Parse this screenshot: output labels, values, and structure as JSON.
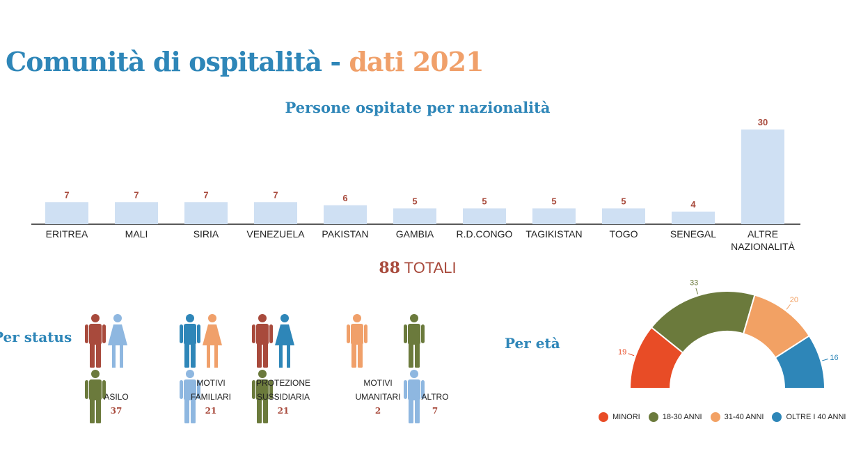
{
  "title": {
    "main": "Comunità di ospitalità",
    "separator": " - ",
    "year": "dati 2021"
  },
  "colors": {
    "accent_blue": "#2e86b8",
    "accent_orange": "#f0a06a",
    "bar_fill": "#cfe0f3",
    "value_red": "#a84a3c",
    "person_brown": "#a84a3c",
    "person_lightblue": "#8eb7e0",
    "person_olive": "#6b7a3c",
    "person_blue": "#2e86b8",
    "person_orange": "#f0a06a"
  },
  "chart_data": [
    {
      "type": "bar",
      "title": "Persone ospitate per nazionalità",
      "categories": [
        "ERITREA",
        "MALI",
        "SIRIA",
        "VENEZUELA",
        "PAKISTAN",
        "GAMBIA",
        "R.D.CONGO",
        "TAGIKISTAN",
        "TOGO",
        "SENEGAL",
        "ALTRE NAZIONALITÀ"
      ],
      "values": [
        7,
        7,
        7,
        7,
        6,
        5,
        5,
        5,
        5,
        4,
        30
      ],
      "ylim": [
        0,
        30
      ],
      "grid": false,
      "legend": "none"
    },
    {
      "type": "pie",
      "title": "Per età",
      "categories": [
        "MINORI",
        "18-30 ANNI",
        "31-40 ANNI",
        "OLTRE I 40 ANNI"
      ],
      "values": [
        19,
        33,
        20,
        16
      ],
      "colors": [
        "#e84c26",
        "#6b7a3c",
        "#f2a164",
        "#2e86b8"
      ],
      "legend": "bottom"
    }
  ],
  "total": {
    "number": "88",
    "label": "TOTALI"
  },
  "status": {
    "title": "Per status",
    "groups": [
      {
        "label_lines": [
          "ASILO"
        ],
        "count": "37",
        "icons": [
          "person-man-icon",
          "person-woman-icon",
          "person-man-icon"
        ],
        "colors": [
          "#a84a3c",
          "#8eb7e0",
          "#6b7a3c"
        ]
      },
      {
        "label_lines": [
          "MOTIVI",
          "FAMILIARI"
        ],
        "count": "21",
        "icons": [
          "person-man-icon",
          "person-woman-icon",
          "person-man-icon"
        ],
        "colors": [
          "#2e86b8",
          "#f0a06a",
          "#8eb7e0"
        ]
      },
      {
        "label_lines": [
          "PROTEZIONE",
          "SUSSIDIARIA"
        ],
        "count": "21",
        "icons": [
          "person-man-icon",
          "person-woman-icon",
          "person-man-icon"
        ],
        "colors": [
          "#a84a3c",
          "#2e86b8",
          "#6b7a3c"
        ]
      },
      {
        "label_lines": [
          "MOTIVI",
          "UMANITARI"
        ],
        "count": "2",
        "icons": [
          "person-man-icon"
        ],
        "colors": [
          "#f0a06a"
        ]
      },
      {
        "label_lines": [
          "ALTRO"
        ],
        "count": "7",
        "icons": [
          "person-man-icon",
          "person-man-icon"
        ],
        "colors": [
          "#6b7a3c",
          "#8eb7e0"
        ]
      }
    ]
  }
}
